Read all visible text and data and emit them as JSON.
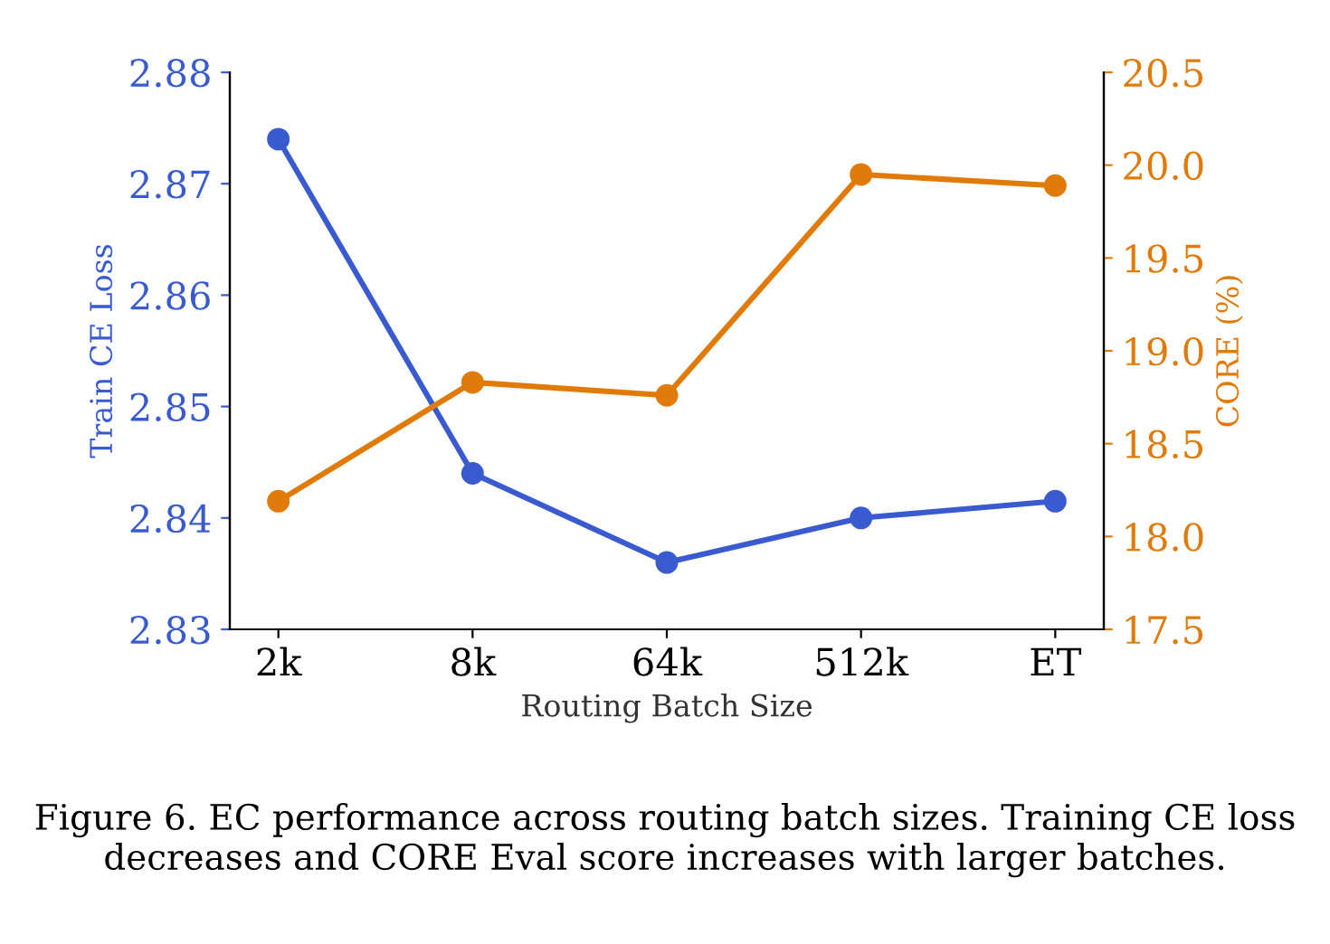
{
  "chart_data": {
    "type": "line",
    "categories": [
      "2k",
      "8k",
      "64k",
      "512k",
      "ET"
    ],
    "xlabel": "Routing Batch Size",
    "ylabel": "Train CE Loss",
    "y2label": "CORE (%)",
    "series": [
      {
        "color": "#3a5bd0",
        "values": [
          2.874,
          2.844,
          2.836,
          2.84,
          2.8415
        ]
      },
      {
        "color": "#e07b0a",
        "axis": "y2",
        "values": [
          18.19,
          18.83,
          18.76,
          19.95,
          19.89
        ]
      }
    ],
    "ylim": [
      2.83,
      2.88
    ],
    "yticks": [
      {
        "value": 2.83,
        "label": "2.83"
      },
      {
        "value": 2.84,
        "label": "2.84"
      },
      {
        "value": 2.85,
        "label": "2.85"
      },
      {
        "value": 2.86,
        "label": "2.86"
      },
      {
        "value": 2.87,
        "label": "2.87"
      },
      {
        "value": 2.88,
        "label": "2.88"
      }
    ],
    "y2lim": [
      17.5,
      20.5
    ],
    "y2ticks": [
      {
        "value": 17.5,
        "label": "17.5"
      },
      {
        "value": 18.0,
        "label": "18.0"
      },
      {
        "value": 18.5,
        "label": "18.5"
      },
      {
        "value": 19.0,
        "label": "19.0"
      },
      {
        "value": 19.5,
        "label": "19.5"
      },
      {
        "value": 20.0,
        "label": "20.0"
      },
      {
        "value": 20.5,
        "label": "20.5"
      }
    ],
    "marker": "circle",
    "line_style": "solid",
    "grid": false,
    "legend": false,
    "annotations": [
      "Figure 6. EC performance across routing batch sizes. Training CE loss decreases and CORE Eval score increases with larger batches."
    ]
  }
}
